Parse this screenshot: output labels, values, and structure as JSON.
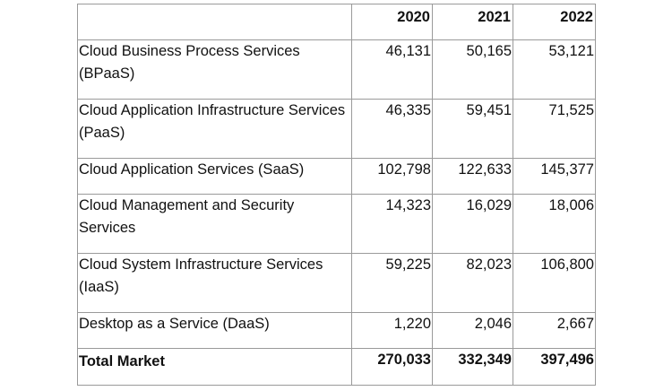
{
  "table": {
    "corner": "",
    "headers": [
      "2020",
      "2021",
      "2022"
    ],
    "rows": [
      {
        "label": "Cloud Business Process Services (BPaaS)",
        "values": [
          "46,131",
          "50,165",
          "53,121"
        ]
      },
      {
        "label": "Cloud Application Infrastructure Services (PaaS)",
        "values": [
          "46,335",
          "59,451",
          "71,525"
        ]
      },
      {
        "label": "Cloud Application Services (SaaS)",
        "values": [
          "102,798",
          "122,633",
          "145,377"
        ]
      },
      {
        "label": "Cloud Management and Security Services",
        "values": [
          "14,323",
          "16,029",
          "18,006"
        ]
      },
      {
        "label": "Cloud System Infrastructure Services (IaaS)",
        "values": [
          "59,225",
          "82,023",
          "106,800"
        ]
      },
      {
        "label": "Desktop as a Service (DaaS)",
        "values": [
          "1,220",
          "2,046",
          "2,667"
        ]
      }
    ],
    "total": {
      "label": "Total Market",
      "values": [
        "270,033",
        "332,349",
        "397,496"
      ]
    }
  }
}
